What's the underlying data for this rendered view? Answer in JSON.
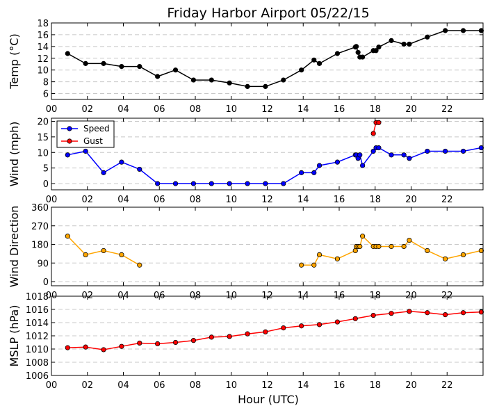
{
  "chart_data": {
    "title": "Friday Harbor Airport 05/22/15",
    "xlabel": "Hour (UTC)",
    "xlim": [
      0,
      24
    ],
    "x_ticks": [
      "00",
      "02",
      "04",
      "06",
      "08",
      "10",
      "12",
      "14",
      "16",
      "18",
      "20",
      "22"
    ],
    "x_tick_values": [
      0,
      2,
      4,
      6,
      8,
      10,
      12,
      14,
      16,
      18,
      20,
      22
    ],
    "grid": "horizontal dashed",
    "panels": [
      {
        "type": "line",
        "ylabel": "Temp (°C)",
        "ylim": [
          5,
          18
        ],
        "y_ticks": [
          6,
          8,
          10,
          12,
          14,
          16,
          18
        ],
        "series": [
          {
            "color": "#000000",
            "x": [
              0.9,
              1.9,
              2.9,
              3.9,
              4.9,
              5.9,
              6.9,
              7.9,
              8.9,
              9.9,
              10.9,
              11.9,
              12.9,
              13.9,
              14.6,
              14.9,
              15.9,
              16.9,
              16.95,
              17.05,
              17.15,
              17.3,
              17.9,
              18.05,
              18.2,
              18.9,
              19.6,
              19.9,
              20.9,
              21.9,
              22.9,
              23.9
            ],
            "y": [
              12.8,
              11.1,
              11.1,
              10.6,
              10.6,
              8.9,
              10.0,
              8.3,
              8.3,
              7.8,
              7.2,
              7.2,
              8.3,
              10.0,
              11.7,
              11.1,
              12.8,
              13.9,
              14.0,
              13.0,
              12.2,
              12.2,
              13.3,
              13.3,
              13.9,
              15.0,
              14.4,
              14.4,
              15.6,
              16.7,
              16.7,
              16.7
            ]
          }
        ]
      },
      {
        "type": "line",
        "ylabel": "Wind (mph)",
        "ylim": [
          -2,
          21
        ],
        "y_ticks": [
          0,
          5,
          10,
          15,
          20
        ],
        "legend": "upper-left",
        "series": [
          {
            "name": "Speed",
            "color": "#0000ff",
            "x": [
              0.9,
              1.9,
              2.9,
              3.9,
              4.9,
              5.9,
              6.9,
              7.9,
              8.9,
              9.9,
              10.9,
              11.9,
              12.9,
              13.9,
              14.6,
              14.9,
              15.9,
              16.9,
              16.95,
              17.05,
              17.15,
              17.3,
              17.9,
              18.05,
              18.2,
              18.9,
              19.6,
              19.9,
              20.9,
              21.9,
              22.9,
              23.9
            ],
            "y": [
              9.2,
              10.4,
              3.5,
              6.9,
              4.6,
              0,
              0,
              0,
              0,
              0,
              0,
              0,
              0,
              3.5,
              3.5,
              5.8,
              6.9,
              9.2,
              9.2,
              8.1,
              9.2,
              5.8,
              10.4,
              11.5,
              11.5,
              9.2,
              9.2,
              8.1,
              10.4,
              10.4,
              10.4,
              11.5
            ]
          },
          {
            "name": "Gust",
            "color": "#ff0000",
            "x": [
              17.9,
              18.05,
              18.2
            ],
            "y": [
              16.1,
              19.6,
              19.6
            ]
          }
        ]
      },
      {
        "type": "line",
        "ylabel": "Wind Direction",
        "ylim": [
          -20,
          360
        ],
        "y_ticks": [
          0,
          90,
          180,
          270,
          360
        ],
        "series": [
          {
            "color": "#ffa500",
            "segments": [
              {
                "x": [
                  0.9,
                  1.9,
                  2.9,
                  3.9,
                  4.9
                ],
                "y": [
                  220,
                  130,
                  150,
                  130,
                  80
                ]
              },
              {
                "x": [
                  13.9,
                  14.6,
                  14.9,
                  15.9,
                  16.9,
                  16.95,
                  17.05,
                  17.15,
                  17.3,
                  17.9,
                  18.05,
                  18.2,
                  18.9,
                  19.6,
                  19.9,
                  20.9,
                  21.9,
                  22.9,
                  23.9
                ],
                "y": [
                  80,
                  80,
                  130,
                  110,
                  150,
                  170,
                  170,
                  170,
                  220,
                  170,
                  170,
                  170,
                  170,
                  170,
                  200,
                  150,
                  110,
                  130,
                  150
                ]
              }
            ]
          }
        ]
      },
      {
        "type": "line",
        "ylabel": "MSLP (hPa)",
        "ylim": [
          1006,
          1018
        ],
        "y_ticks": [
          1006,
          1008,
          1010,
          1012,
          1014,
          1016,
          1018
        ],
        "series": [
          {
            "color": "#ff0000",
            "x": [
              0.9,
              1.9,
              2.9,
              3.9,
              4.9,
              5.9,
              6.9,
              7.9,
              8.9,
              9.9,
              10.9,
              11.9,
              12.9,
              13.9,
              14.9,
              15.9,
              16.9,
              17.9,
              18.9,
              19.9,
              20.9,
              21.9,
              22.9,
              23.9
            ],
            "y": [
              1010.2,
              1010.3,
              1009.9,
              1010.4,
              1010.9,
              1010.8,
              1011.0,
              1011.3,
              1011.8,
              1011.9,
              1012.3,
              1012.6,
              1013.2,
              1013.5,
              1013.7,
              1014.1,
              1014.6,
              1015.1,
              1015.4,
              1015.7,
              1015.5,
              1015.2,
              1015.5,
              1015.6
            ]
          }
        ]
      }
    ]
  }
}
